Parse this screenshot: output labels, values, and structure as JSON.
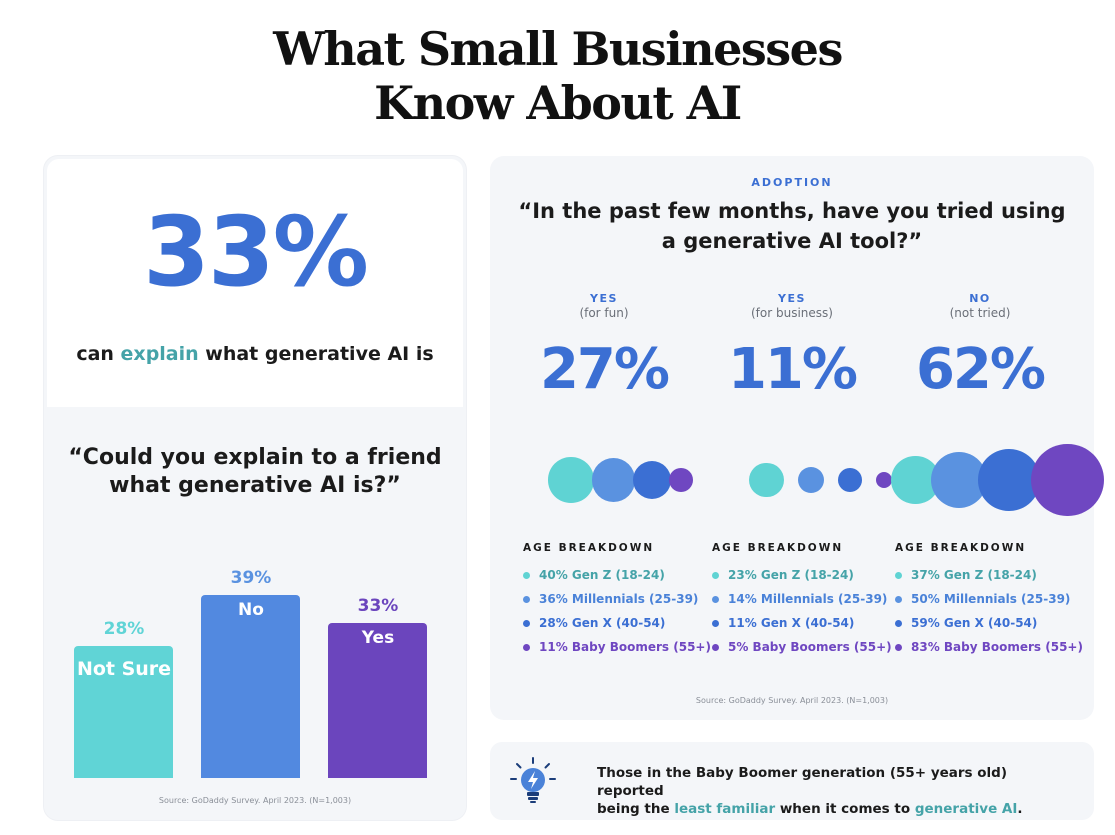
{
  "page": {
    "title_line1": "What Small Businesses",
    "title_line2": "Know About AI"
  },
  "left": {
    "big_stat": "33%",
    "caption_pre": "can ",
    "caption_highlight": "explain",
    "caption_post": " what generative AI is",
    "question": "“Could you explain to a friend what generative AI is?”",
    "source": "Source: GoDaddy Survey. April 2023. (N=1,003)"
  },
  "right": {
    "section_label": "ADOPTION",
    "question": "“In the past few months, have you tried using a generative AI tool?”",
    "columns": [
      {
        "answer": "YES",
        "sub": "(for fun)",
        "pct": "27%"
      },
      {
        "answer": "YES",
        "sub": "(for business)",
        "pct": "11%"
      },
      {
        "answer": "NO",
        "sub": "(not tried)",
        "pct": "62%"
      }
    ],
    "age_title": "AGE BREAKDOWN",
    "age_breakdown": [
      [
        "40% Gen Z (18-24)",
        "36% Millennials (25-39)",
        "28% Gen X (40-54)",
        "11% Baby Boomers (55+)"
      ],
      [
        "23% Gen Z (18-24)",
        "14% Millennials (25-39)",
        "11% Gen X (40-54)",
        "5% Baby Boomers (55+)"
      ],
      [
        "37% Gen Z (18-24)",
        "50% Millennials (25-39)",
        "59% Gen X (40-54)",
        "83% Baby Boomers (55+)"
      ]
    ],
    "source": "Source: GoDaddy Survey. April 2023. (N=1,003)"
  },
  "tip": {
    "line1": "Those in the Baby Boomer generation (55+ years old) reported",
    "line2_pre": "being the ",
    "line2_hl1": "least familiar",
    "line2_mid": " when it comes to ",
    "line2_hl2": "generative AI",
    "line2_post": "."
  },
  "colors": {
    "teal": "#5fd3d3",
    "light_blue": "#5a92e0",
    "blue": "#3b6fd3",
    "purple": "#6f47c1",
    "bar_teal": "#60d4d6",
    "bar_blue": "#5289e0",
    "bar_purple": "#6b45bd"
  },
  "icons": {
    "tip": "lightbulb-icon"
  },
  "chart_data": [
    {
      "type": "bar",
      "categories": [
        "Not Sure",
        "No",
        "Yes"
      ],
      "values": [
        28,
        39,
        33
      ],
      "labels": [
        "28%",
        "39%",
        "33%"
      ],
      "colors": [
        "#60d4d6",
        "#5289e0",
        "#6b45bd"
      ],
      "title": "“Could you explain to a friend what generative AI is?”",
      "xlabel": "",
      "ylabel": "",
      "ylim": [
        0,
        40
      ]
    },
    {
      "type": "scatter",
      "title": "“In the past few months, have you tried using a generative AI tool?”",
      "categories": [
        "YES (for fun)",
        "YES (for business)",
        "NO (not tried)"
      ],
      "series": [
        {
          "name": "Gen Z (18-24)",
          "values": [
            40,
            23,
            37
          ],
          "color": "#5fd3d3"
        },
        {
          "name": "Millennials (25-39)",
          "values": [
            36,
            14,
            50
          ],
          "color": "#5a92e0"
        },
        {
          "name": "Gen X (40-54)",
          "values": [
            28,
            11,
            59
          ],
          "color": "#3b6fd3"
        },
        {
          "name": "Baby Boomers (55+)",
          "values": [
            11,
            5,
            83
          ],
          "color": "#6f47c1"
        }
      ],
      "totals": [
        27,
        11,
        62
      ]
    }
  ]
}
